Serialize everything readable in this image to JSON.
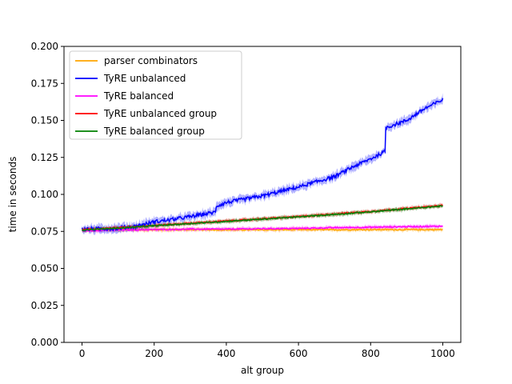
{
  "chart_data": {
    "type": "line",
    "title": "",
    "xlabel": "alt group",
    "ylabel": "time in seconds",
    "xlim": [
      -50,
      1050
    ],
    "ylim": [
      0,
      0.2
    ],
    "xticks": [
      0,
      200,
      400,
      600,
      800,
      1000
    ],
    "xtick_labels": [
      "0",
      "200",
      "400",
      "600",
      "800",
      "1000"
    ],
    "yticks": [
      0,
      0.025,
      0.05,
      0.075,
      0.1,
      0.125,
      0.15,
      0.175,
      0.2
    ],
    "ytick_labels": [
      "0.000",
      "0.025",
      "0.050",
      "0.075",
      "0.100",
      "0.125",
      "0.150",
      "0.175",
      "0.200"
    ],
    "grid": false,
    "legend_position": "top-left",
    "series": [
      {
        "name": "parser combinators",
        "color": "#ffa500",
        "x": [
          0,
          100,
          200,
          300,
          400,
          500,
          600,
          700,
          800,
          900,
          1000
        ],
        "y": [
          0.076,
          0.0762,
          0.0761,
          0.0762,
          0.0761,
          0.0761,
          0.0762,
          0.0761,
          0.0762,
          0.0762,
          0.0762
        ]
      },
      {
        "name": "TyRE unbalanced",
        "color": "#0000ff",
        "x": [
          0,
          60,
          100,
          110,
          150,
          200,
          250,
          300,
          370,
          371,
          400,
          500,
          600,
          700,
          750,
          800,
          840,
          841,
          900,
          950,
          1000
        ],
        "y": [
          0.0765,
          0.0768,
          0.077,
          0.0775,
          0.0785,
          0.0815,
          0.083,
          0.085,
          0.088,
          0.092,
          0.0945,
          0.099,
          0.105,
          0.112,
          0.1185,
          0.124,
          0.129,
          0.145,
          0.15,
          0.158,
          0.164
        ]
      },
      {
        "name": "TyRE balanced",
        "color": "#ff00ff",
        "x": [
          0,
          100,
          200,
          300,
          400,
          500,
          600,
          700,
          800,
          900,
          1000
        ],
        "y": [
          0.0755,
          0.076,
          0.0762,
          0.0765,
          0.0765,
          0.0768,
          0.077,
          0.0775,
          0.0778,
          0.0782,
          0.0785
        ]
      },
      {
        "name": "TyRE unbalanced group",
        "color": "#ff0000",
        "x": [
          0,
          100,
          200,
          300,
          400,
          500,
          600,
          700,
          800,
          900,
          1000
        ],
        "y": [
          0.0762,
          0.0775,
          0.079,
          0.0805,
          0.082,
          0.0835,
          0.085,
          0.0868,
          0.0885,
          0.0905,
          0.0925
        ]
      },
      {
        "name": "TyRE balanced group",
        "color": "#008000",
        "x": [
          0,
          100,
          200,
          300,
          400,
          500,
          600,
          700,
          800,
          900,
          1000
        ],
        "y": [
          0.076,
          0.0772,
          0.0788,
          0.0803,
          0.0818,
          0.0833,
          0.0848,
          0.0865,
          0.0882,
          0.0902,
          0.0922
        ]
      }
    ]
  }
}
